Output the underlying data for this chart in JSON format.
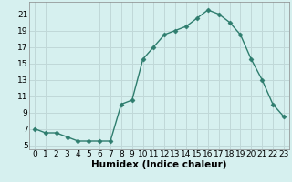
{
  "x": [
    0,
    1,
    2,
    3,
    4,
    5,
    6,
    7,
    8,
    9,
    10,
    11,
    12,
    13,
    14,
    15,
    16,
    17,
    18,
    19,
    20,
    21,
    22,
    23
  ],
  "y": [
    7.0,
    6.5,
    6.5,
    6.0,
    5.5,
    5.5,
    5.5,
    5.5,
    10.0,
    10.5,
    15.5,
    17.0,
    18.5,
    19.0,
    19.5,
    20.5,
    21.5,
    21.0,
    20.0,
    18.5,
    15.5,
    13.0,
    10.0,
    8.5
  ],
  "line_color": "#2e7d6e",
  "bg_color": "#d6f0ef",
  "grid_color": "#c0d8d8",
  "xlabel": "Humidex (Indice chaleur)",
  "yticks": [
    5,
    7,
    9,
    11,
    13,
    15,
    17,
    19,
    21
  ],
  "xticks": [
    0,
    1,
    2,
    3,
    4,
    5,
    6,
    7,
    8,
    9,
    10,
    11,
    12,
    13,
    14,
    15,
    16,
    17,
    18,
    19,
    20,
    21,
    22,
    23
  ],
  "xlim": [
    -0.5,
    23.5
  ],
  "ylim": [
    4.5,
    22.5
  ],
  "marker": "D",
  "markersize": 2.5,
  "linewidth": 1.0,
  "xlabel_fontsize": 7.5,
  "tick_fontsize": 6.5
}
